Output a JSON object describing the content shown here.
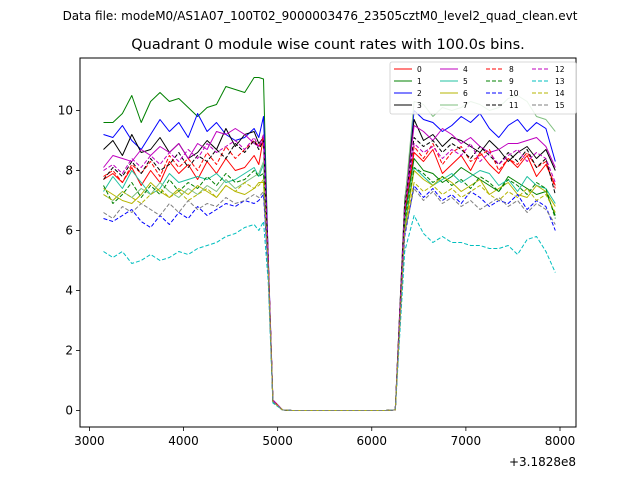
{
  "figure": {
    "suptitle": "Data file: modeM0/AS1A07_100T02_9000003476_23505cztM0_level2_quad_clean.evt"
  },
  "chart_data": {
    "type": "line",
    "title": "Quadrant 0 module wise count rates with 100.0s bins.",
    "xlabel": "",
    "ylabel": "",
    "x_offset_label": "+3.1828e8",
    "xlim": [
      2900,
      8170
    ],
    "ylim": [
      -0.55,
      11.75
    ],
    "xticks": [
      3000,
      4000,
      5000,
      6000,
      7000,
      8000
    ],
    "yticks": [
      0,
      2,
      4,
      6,
      8,
      10
    ],
    "grid": false,
    "legend_position": "top-right",
    "legend_columns": 4,
    "x": [
      3150,
      3250,
      3350,
      3450,
      3550,
      3650,
      3750,
      3850,
      3950,
      4050,
      4150,
      4250,
      4350,
      4450,
      4550,
      4650,
      4750,
      4800,
      4850,
      4900,
      4950,
      5050,
      5150,
      5250,
      5350,
      5450,
      5550,
      5650,
      5750,
      5850,
      5950,
      6050,
      6150,
      6250,
      6350,
      6450,
      6550,
      6650,
      6750,
      6850,
      6950,
      7050,
      7150,
      7250,
      7350,
      7450,
      7550,
      7650,
      7750,
      7850,
      7950
    ],
    "series": [
      {
        "name": "0",
        "color": "#ff0000",
        "dashed": false,
        "values": [
          7.7,
          7.9,
          7.6,
          8.1,
          7.5,
          8.0,
          7.6,
          8.3,
          7.9,
          8.2,
          7.7,
          8.3,
          7.9,
          8.4,
          8.0,
          8.1,
          8.5,
          8.2,
          9.1,
          5.0,
          0.35,
          0.02,
          0,
          0,
          0,
          0,
          0,
          0,
          0,
          0,
          0,
          0,
          0,
          0.02,
          6.5,
          8.6,
          8.3,
          8.7,
          7.9,
          8.2,
          8.5,
          8.0,
          8.6,
          8.2,
          7.9,
          8.4,
          8.1,
          8.5,
          7.8,
          8.2,
          7.5
        ]
      },
      {
        "name": "1",
        "color": "#008000",
        "dashed": false,
        "values": [
          9.6,
          9.6,
          9.9,
          10.5,
          9.6,
          10.3,
          10.6,
          10.3,
          10.4,
          10.1,
          9.8,
          10.1,
          10.2,
          10.8,
          10.7,
          10.6,
          11.1,
          11.1,
          11.05,
          5.0,
          0.3,
          0.02,
          0,
          0,
          0,
          0,
          0,
          0,
          0,
          0,
          0,
          0,
          0,
          0.02,
          6.5,
          8.4,
          8.0,
          7.9,
          7.6,
          7.8,
          8.1,
          7.9,
          7.7,
          7.5,
          7.3,
          7.8,
          7.6,
          7.4,
          7.2,
          7.3,
          6.5
        ]
      },
      {
        "name": "2",
        "color": "#0000ff",
        "dashed": false,
        "values": [
          9.2,
          9.1,
          9.5,
          9.0,
          8.7,
          9.2,
          9.7,
          9.3,
          9.6,
          9.1,
          9.9,
          9.3,
          9.6,
          9.2,
          9.0,
          9.1,
          9.4,
          9.1,
          9.8,
          5.2,
          0.35,
          0.02,
          0,
          0,
          0,
          0,
          0,
          0,
          0,
          0,
          0,
          0,
          0,
          0.02,
          6.8,
          10.0,
          9.7,
          9.6,
          9.3,
          9.5,
          9.8,
          9.6,
          9.9,
          9.4,
          9.1,
          9.5,
          9.7,
          9.3,
          9.6,
          9.4,
          8.3
        ]
      },
      {
        "name": "3",
        "color": "#000000",
        "dashed": false,
        "values": [
          8.7,
          9.0,
          8.5,
          9.2,
          8.6,
          8.7,
          9.1,
          8.6,
          8.9,
          8.4,
          8.6,
          9.0,
          8.7,
          9.4,
          8.8,
          9.2,
          9.3,
          8.9,
          9.1,
          5.0,
          0.3,
          0.02,
          0,
          0,
          0,
          0,
          0,
          0,
          0,
          0,
          0,
          0,
          0,
          0.02,
          7.0,
          9.7,
          9.0,
          9.2,
          8.8,
          9.1,
          9.0,
          8.8,
          8.6,
          9.0,
          8.7,
          8.3,
          8.6,
          8.8,
          8.4,
          8.7,
          8.0
        ]
      },
      {
        "name": "4",
        "color": "#bf00bf",
        "dashed": false,
        "values": [
          8.1,
          8.5,
          8.4,
          8.3,
          8.7,
          8.5,
          8.8,
          8.6,
          8.9,
          8.4,
          8.9,
          8.7,
          9.3,
          9.2,
          9.4,
          9.2,
          8.9,
          8.8,
          9.0,
          5.0,
          0.3,
          0.02,
          0,
          0,
          0,
          0,
          0,
          0,
          0,
          0,
          0,
          0,
          0,
          0.02,
          6.8,
          9.5,
          9.3,
          9.0,
          9.4,
          9.2,
          8.9,
          9.1,
          8.8,
          8.6,
          8.7,
          8.9,
          8.9,
          9.0,
          9.1,
          8.8,
          8.1
        ]
      },
      {
        "name": "5",
        "color": "#20c0a0",
        "dashed": false,
        "values": [
          7.3,
          7.8,
          7.4,
          8.0,
          7.6,
          7.2,
          7.4,
          7.9,
          7.6,
          7.7,
          7.8,
          7.7,
          7.9,
          7.6,
          7.7,
          7.9,
          8.1,
          7.8,
          8.2,
          4.8,
          0.3,
          0.02,
          0,
          0,
          0,
          0,
          0,
          0,
          0,
          0,
          0,
          0,
          0,
          0.02,
          6.2,
          8.1,
          7.8,
          7.5,
          7.7,
          7.9,
          7.6,
          7.8,
          8.0,
          7.9,
          7.5,
          7.7,
          7.3,
          7.8,
          7.5,
          7.4,
          6.9
        ]
      },
      {
        "name": "6",
        "color": "#b5b500",
        "dashed": false,
        "values": [
          7.4,
          7.2,
          7.0,
          6.9,
          7.2,
          7.6,
          7.3,
          7.1,
          7.4,
          7.2,
          7.5,
          7.3,
          7.1,
          7.5,
          7.3,
          7.2,
          7.4,
          7.6,
          7.6,
          4.7,
          0.3,
          0.02,
          0,
          0,
          0,
          0,
          0,
          0,
          0,
          0,
          0,
          0,
          0,
          0.02,
          6.0,
          8.0,
          7.7,
          7.5,
          7.8,
          7.6,
          7.3,
          7.5,
          7.7,
          7.2,
          7.4,
          7.6,
          7.2,
          7.1,
          7.5,
          7.3,
          6.8
        ]
      },
      {
        "name": "7",
        "color": "#7fbf7f",
        "dashed": false,
        "values": [
          7.2,
          7.0,
          7.3,
          7.1,
          7.4,
          7.2,
          7.6,
          7.3,
          7.1,
          7.4,
          7.2,
          7.5,
          7.3,
          7.7,
          7.4,
          7.6,
          7.8,
          7.9,
          8.3,
          4.9,
          0.3,
          0.02,
          0,
          0,
          0,
          0,
          0,
          0,
          0,
          0,
          0,
          0,
          0,
          0.02,
          6.9,
          10.3,
          10.2,
          9.8,
          10.1,
          10.0,
          10.1,
          10.3,
          10.2,
          10.0,
          10.1,
          10.4,
          10.5,
          10.3,
          9.8,
          9.7,
          9.3
        ]
      },
      {
        "name": "8",
        "color": "#ff0000",
        "dashed": true,
        "values": [
          7.8,
          8.0,
          7.6,
          8.2,
          7.9,
          8.3,
          7.8,
          8.5,
          8.1,
          8.4,
          8.0,
          8.6,
          8.2,
          8.8,
          8.4,
          8.7,
          9.0,
          8.8,
          9.1,
          5.1,
          0.35,
          0.02,
          0,
          0,
          0,
          0,
          0,
          0,
          0,
          0,
          0,
          0,
          0,
          0.02,
          6.6,
          8.8,
          8.4,
          8.9,
          8.2,
          8.6,
          8.8,
          8.3,
          8.5,
          8.7,
          8.0,
          8.4,
          8.2,
          8.6,
          8.1,
          8.3,
          7.4
        ]
      },
      {
        "name": "9",
        "color": "#008000",
        "dashed": true,
        "values": [
          7.5,
          6.9,
          7.2,
          7.6,
          7.1,
          7.5,
          7.2,
          7.7,
          7.3,
          7.6,
          7.4,
          7.8,
          7.5,
          7.9,
          7.6,
          7.7,
          8.0,
          7.8,
          7.9,
          4.8,
          0.3,
          0.02,
          0,
          0,
          0,
          0,
          0,
          0,
          0,
          0,
          0,
          0,
          0,
          0.02,
          6.3,
          8.1,
          7.9,
          7.6,
          7.8,
          7.5,
          7.7,
          7.4,
          7.8,
          7.6,
          7.3,
          7.7,
          7.5,
          7.2,
          7.6,
          7.4,
          6.4
        ]
      },
      {
        "name": "10",
        "color": "#0000ff",
        "dashed": true,
        "values": [
          6.4,
          6.3,
          6.5,
          6.7,
          6.3,
          6.1,
          6.5,
          6.2,
          6.6,
          6.4,
          6.8,
          6.5,
          6.7,
          6.9,
          6.8,
          7.0,
          6.9,
          7.0,
          7.2,
          4.6,
          0.3,
          0.02,
          0,
          0,
          0,
          0,
          0,
          0,
          0,
          0,
          0,
          0,
          0,
          0.02,
          5.8,
          7.5,
          7.1,
          7.4,
          7.0,
          7.2,
          6.9,
          7.3,
          7.1,
          6.8,
          7.0,
          6.9,
          7.2,
          6.7,
          7.0,
          6.8,
          6.0
        ]
      },
      {
        "name": "11",
        "color": "#000000",
        "dashed": true,
        "values": [
          7.7,
          8.1,
          7.8,
          8.3,
          7.9,
          8.4,
          8.0,
          8.2,
          8.6,
          8.1,
          8.5,
          8.3,
          8.7,
          8.4,
          8.9,
          8.6,
          9.0,
          8.7,
          9.0,
          5.0,
          0.3,
          0.02,
          0,
          0,
          0,
          0,
          0,
          0,
          0,
          0,
          0,
          0,
          0,
          0.02,
          6.8,
          9.1,
          8.8,
          9.0,
          8.6,
          8.9,
          8.7,
          8.4,
          8.8,
          8.5,
          8.2,
          8.6,
          8.3,
          8.7,
          8.1,
          8.4,
          7.2
        ]
      },
      {
        "name": "12",
        "color": "#bf00bf",
        "dashed": true,
        "values": [
          8.0,
          8.2,
          7.9,
          8.4,
          8.1,
          8.5,
          8.2,
          8.6,
          8.3,
          8.7,
          8.4,
          8.9,
          8.6,
          8.8,
          9.0,
          8.7,
          9.1,
          8.8,
          9.2,
          5.1,
          0.35,
          0.02,
          0,
          0,
          0,
          0,
          0,
          0,
          0,
          0,
          0,
          0,
          0,
          0.02,
          6.7,
          8.9,
          8.6,
          8.8,
          8.4,
          8.7,
          8.5,
          8.9,
          8.3,
          8.6,
          8.2,
          8.5,
          8.7,
          8.3,
          8.6,
          8.4,
          7.6
        ]
      },
      {
        "name": "13",
        "color": "#00bfbf",
        "dashed": true,
        "values": [
          5.3,
          5.1,
          5.3,
          4.9,
          5.0,
          5.2,
          5.0,
          5.1,
          5.3,
          5.2,
          5.4,
          5.5,
          5.6,
          5.8,
          5.9,
          6.1,
          6.2,
          6.0,
          6.3,
          4.3,
          0.25,
          0.02,
          0,
          0,
          0,
          0,
          0,
          0,
          0,
          0,
          0,
          0,
          0,
          0.02,
          5.3,
          6.5,
          5.9,
          5.6,
          5.8,
          5.6,
          5.6,
          5.5,
          5.5,
          5.4,
          5.4,
          5.5,
          5.2,
          5.7,
          5.8,
          5.3,
          4.6
        ]
      },
      {
        "name": "14",
        "color": "#b5b500",
        "dashed": true,
        "values": [
          7.2,
          7.0,
          7.3,
          7.1,
          6.9,
          7.2,
          7.4,
          7.1,
          7.3,
          7.0,
          7.2,
          7.4,
          7.1,
          7.5,
          7.3,
          7.6,
          7.4,
          7.5,
          7.7,
          4.8,
          0.3,
          0.02,
          0,
          0,
          0,
          0,
          0,
          0,
          0,
          0,
          0,
          0,
          0,
          0.02,
          6.0,
          7.6,
          7.3,
          7.5,
          7.2,
          7.4,
          7.1,
          7.3,
          7.5,
          7.2,
          7.0,
          7.3,
          7.1,
          7.4,
          7.0,
          7.2,
          6.6
        ]
      },
      {
        "name": "15",
        "color": "#7f7f7f",
        "dashed": true,
        "values": [
          6.6,
          6.4,
          6.8,
          6.6,
          6.9,
          6.7,
          6.5,
          6.9,
          6.6,
          7.0,
          6.7,
          6.9,
          6.8,
          7.1,
          6.9,
          7.0,
          7.2,
          7.1,
          7.3,
          4.7,
          0.3,
          0.02,
          0,
          0,
          0,
          0,
          0,
          0,
          0,
          0,
          0,
          0,
          0,
          0.02,
          5.9,
          7.4,
          7.0,
          7.3,
          6.9,
          7.1,
          6.8,
          7.0,
          6.7,
          6.9,
          7.1,
          6.8,
          7.0,
          6.6,
          6.9,
          6.7,
          6.2
        ]
      }
    ]
  }
}
